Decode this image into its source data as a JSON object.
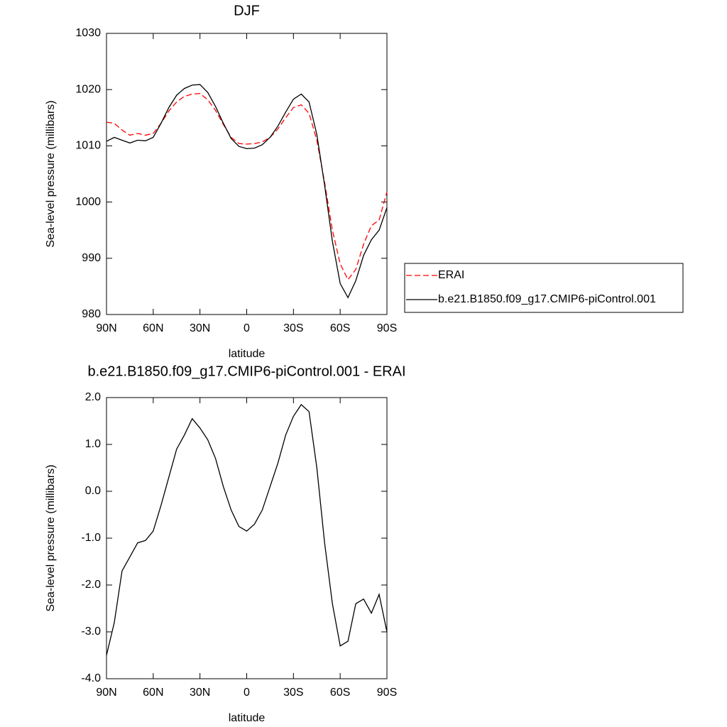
{
  "chart_data": [
    {
      "type": "line",
      "title": "DJF",
      "xlabel": "latitude",
      "ylabel": "Sea-level pressure (millibars)",
      "x": [
        90,
        85,
        80,
        75,
        70,
        65,
        60,
        55,
        50,
        45,
        40,
        35,
        30,
        25,
        20,
        15,
        10,
        5,
        0,
        -5,
        -10,
        -15,
        -20,
        -25,
        -30,
        -35,
        -40,
        -45,
        -50,
        -55,
        -60,
        -65,
        -70,
        -75,
        -80,
        -85,
        -90
      ],
      "series": [
        {
          "name": "ERAI",
          "color": "#ff0000",
          "dash": true,
          "values": [
            1014.2,
            1014,
            1012.8,
            1011.9,
            1012.2,
            1011.9,
            1012.2,
            1014,
            1016.2,
            1017.8,
            1018.8,
            1019.2,
            1019.3,
            1018.2,
            1016.3,
            1013.8,
            1011.5,
            1010.4,
            1010.3,
            1010.4,
            1010.7,
            1011.5,
            1013,
            1015,
            1016.8,
            1017.3,
            1015.8,
            1011,
            1003.5,
            995,
            989,
            986.2,
            988,
            992.5,
            995.8,
            996.8,
            1001.8
          ]
        },
        {
          "name": "b.e21.B1850.f09_g17.CMIP6-piControl.001",
          "color": "#000000",
          "dash": false,
          "values": [
            1010.8,
            1011.5,
            1011,
            1010.5,
            1011,
            1010.9,
            1011.5,
            1014,
            1016.8,
            1019,
            1020.2,
            1020.8,
            1020.9,
            1019.5,
            1017,
            1014,
            1011.3,
            1009.9,
            1009.5,
            1009.6,
            1010.2,
            1011.5,
            1013.5,
            1016,
            1018.3,
            1019.2,
            1017.8,
            1012,
            1003,
            993,
            985.5,
            983,
            986,
            990.5,
            993.3,
            995,
            999
          ]
        }
      ],
      "xlim": [
        90,
        -90
      ],
      "xticks": [
        {
          "value": 90,
          "label": "90N"
        },
        {
          "value": 60,
          "label": "60N"
        },
        {
          "value": 30,
          "label": "30N"
        },
        0,
        {
          "value": -30,
          "label": "30S"
        },
        {
          "value": -60,
          "label": "60S"
        },
        {
          "value": -90,
          "label": "90S"
        }
      ],
      "ylim": [
        980,
        1030
      ],
      "yticks": [
        980,
        990,
        1000,
        1010,
        1020,
        1030
      ],
      "legend": "right"
    },
    {
      "type": "line",
      "title": "b.e21.B1850.f09_g17.CMIP6-piControl.001 - ERAI",
      "xlabel": "latitude",
      "ylabel": "Sea-level pressure (millibars)",
      "x": [
        90,
        85,
        80,
        75,
        70,
        65,
        60,
        55,
        50,
        45,
        40,
        35,
        30,
        25,
        20,
        15,
        10,
        5,
        0,
        -5,
        -10,
        -15,
        -20,
        -25,
        -30,
        -35,
        -40,
        -45,
        -50,
        -55,
        -60,
        -65,
        -70,
        -75,
        -80,
        -85,
        -90
      ],
      "values": [
        -3.5,
        -2.8,
        -1.7,
        -1.4,
        -1.1,
        -1.05,
        -0.85,
        -0.3,
        0.3,
        0.9,
        1.2,
        1.55,
        1.35,
        1.1,
        0.7,
        0.1,
        -0.4,
        -0.75,
        -0.85,
        -0.7,
        -0.4,
        0.1,
        0.6,
        1.2,
        1.6,
        1.85,
        1.7,
        0.5,
        -1.1,
        -2.4,
        -3.3,
        -3.2,
        -2.4,
        -2.3,
        -2.6,
        -2.2,
        -3.0
      ],
      "color": "#000000",
      "xlim": [
        90,
        -90
      ],
      "xticks": [
        {
          "value": 90,
          "label": "90N"
        },
        {
          "value": 60,
          "label": "60N"
        },
        {
          "value": 30,
          "label": "30N"
        },
        0,
        {
          "value": -30,
          "label": "30S"
        },
        {
          "value": -60,
          "label": "60S"
        },
        {
          "value": -90,
          "label": "90S"
        }
      ],
      "ylim": [
        -4,
        2
      ],
      "yticks": [
        {
          "value": -4,
          "label": "-4.0"
        },
        {
          "value": -3,
          "label": "-3.0"
        },
        {
          "value": -2,
          "label": "-2.0"
        },
        {
          "value": -1,
          "label": "-1.0"
        },
        {
          "value": 0,
          "label": "0.0"
        },
        {
          "value": 1,
          "label": "1.0"
        },
        {
          "value": 2,
          "label": "2.0"
        }
      ]
    }
  ]
}
